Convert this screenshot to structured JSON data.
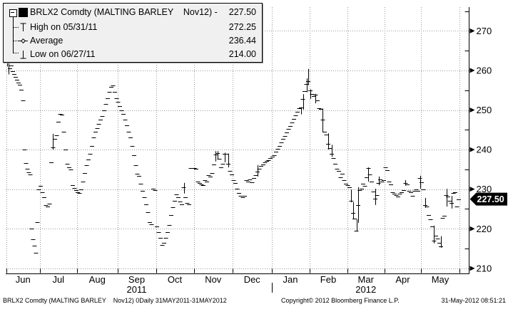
{
  "colors": {
    "grid": "#999999",
    "axis": "#000000",
    "marks": "#000000",
    "legend_bg": "#f0f0f0",
    "tag_bg": "#000000",
    "tag_text": "#ffffff"
  },
  "legend": {
    "title": {
      "label": "BRLX2 Comdty (MALTING BARLEY    Nov12) - ",
      "value": "227.50"
    },
    "rows": [
      {
        "icon": "high-marker",
        "label": "High on 05/31/11",
        "value": "272.25"
      },
      {
        "icon": "average-marker",
        "label": "Average",
        "value": "236.44"
      },
      {
        "icon": "low-marker",
        "label": "Low on 06/27/11",
        "value": "214.00"
      }
    ]
  },
  "status_bar": {
    "left": "BRLX2 Comdty (MALTING BARLEY    Nov12) 0Daily 31MAY2011-31MAY2012",
    "center": "Copyright© 2012 Bloomberg Finance L.P.",
    "right": "31-May-2012 08:51:21"
  },
  "chart_data": {
    "type": "ohlc_daily_ticks",
    "title": "BRLX2 Comdty (MALTING BARLEY Nov12) Daily 31MAY2011-31MAY2012",
    "last_price": 227.5,
    "last_price_label": "227.50",
    "high": {
      "date": "05/31/11",
      "value": 272.25
    },
    "low": {
      "date": "06/27/11",
      "value": 214.0
    },
    "average": 236.44,
    "ylim": [
      208.8,
      276.0
    ],
    "y_ticks_major": [
      210,
      220,
      230,
      240,
      250,
      260,
      270
    ],
    "y_ticks_minor": [
      215,
      225,
      235,
      245,
      255,
      265,
      275
    ],
    "grid": true,
    "year_separator_after_month_index": 6,
    "months": [
      {
        "label": "Jun",
        "year_label": null,
        "closes": [
          272.25,
          262,
          260.5,
          261.2,
          259.8,
          259,
          258.3,
          257.6,
          257,
          256.4,
          255.2,
          252.4,
          240,
          236.6,
          235.2,
          234.3,
          233.8,
          220,
          217.4,
          215.8,
          214,
          221.6,
          230
        ],
        "ranges": [
          [
            0,
            272.25,
            261
          ],
          [
            1,
            263,
            259
          ]
        ]
      },
      {
        "label": "Jul",
        "year_label": null,
        "closes": [
          230.9,
          229.3,
          227.9,
          226,
          225.6,
          226.3,
          236.7,
          240.5,
          242.8,
          243.6,
          247,
          249,
          248.8,
          244.5,
          240,
          236.5,
          235.6,
          235,
          231.1,
          230.3,
          229.7
        ],
        "ranges": [
          [
            7,
            244,
            240
          ]
        ]
      },
      {
        "label": "Aug",
        "year_label": null,
        "closes": [
          229.3,
          229,
          230,
          232,
          234,
          236,
          237.5,
          239,
          241,
          243,
          244.5,
          245.5,
          246.5,
          247.5,
          248.5,
          250,
          251.5,
          253,
          254.5,
          255.8,
          256.2,
          254.5,
          253
        ],
        "ranges": []
      },
      {
        "label": "Sep",
        "year_label": "2011",
        "closes": [
          252,
          251,
          250,
          249,
          247.5,
          246.2,
          244.6,
          243,
          241,
          238.5,
          236,
          233.9,
          233.3,
          231.3,
          229.6,
          228,
          226.2,
          224.2,
          221.7,
          221.2,
          230.2,
          229.8
        ],
        "ranges": []
      },
      {
        "label": "Oct",
        "year_label": null,
        "closes": [
          220.6,
          219.2,
          217.7,
          215.9,
          216.5,
          217.7,
          219.2,
          221,
          223.5,
          225.4,
          227,
          228.6,
          228,
          226.9,
          226.2,
          230.4,
          228,
          226.5,
          226.1,
          235.4,
          235.3
        ],
        "ranges": [
          [
            15,
            231.6,
            228.9
          ]
        ]
      },
      {
        "label": "Nov",
        "year_label": null,
        "closes": [
          235.4,
          235.2,
          232,
          231.5,
          231.2,
          231,
          232.3,
          232,
          233.5,
          233.2,
          234,
          236.2,
          238.8,
          239.2,
          237.6,
          235.5,
          236.4,
          238.9,
          239,
          236.5,
          234.6,
          233.7
        ],
        "ranges": [
          [
            12,
            239.6,
            237
          ],
          [
            13,
            239.6,
            237.5
          ],
          [
            17,
            239.2,
            236.8
          ],
          [
            19,
            239,
            235.5
          ]
        ]
      },
      {
        "label": "Dec",
        "year_label": null,
        "closes": [
          232.2,
          231.6,
          230.2,
          229,
          228.3,
          228,
          228.4,
          232.2,
          231.9,
          232.4,
          231.8,
          232.8,
          233.5,
          234.4,
          235.2,
          235.8,
          236.3,
          236.8,
          237.2,
          237.4,
          237.8
        ],
        "ranges": [
          [
            13,
            236.1,
            233.2
          ]
        ]
      },
      {
        "label": "Jan",
        "year_label": null,
        "closes": [
          238.2,
          238.6,
          239.4,
          240.2,
          241,
          241.8,
          242.7,
          243.5,
          244.3,
          245.2,
          246,
          246.8,
          247.7,
          248.6,
          249.5,
          250.4,
          250.7,
          252.8,
          254.8,
          256.5,
          257.2
        ],
        "ranges": [
          [
            16,
            250.7,
            248.9
          ],
          [
            17,
            254,
            250.1
          ],
          [
            19,
            258,
            254.5
          ],
          [
            20,
            260.4,
            256.3
          ]
        ]
      },
      {
        "label": "Feb",
        "year_label": null,
        "closes": [
          255,
          254,
          253.5,
          253.9,
          252.5,
          250.5,
          250.3,
          247.5,
          244.5,
          243.8,
          241.5,
          240.3,
          239,
          237.9,
          236.5,
          235.2,
          234.6,
          233,
          233.9,
          232.2,
          231.4
        ],
        "ranges": [
          [
            0,
            255.2,
            252.8
          ],
          [
            3,
            254.1,
            251.7
          ],
          [
            7,
            250.4,
            244.5
          ],
          [
            10,
            244.1,
            240
          ],
          [
            12,
            241.2,
            238.2
          ]
        ]
      },
      {
        "label": "Mar",
        "year_label": "2012",
        "closes": [
          231,
          230.5,
          227,
          224,
          222.6,
          219.5,
          226,
          229.8,
          230.1,
          231.3,
          230.8,
          233,
          235.3,
          233.8,
          232,
          229.4,
          227.6,
          228.5,
          231.5,
          232.5,
          232,
          232.3
        ],
        "ranges": [
          [
            2,
            229.9,
            226.7
          ],
          [
            3,
            226.7,
            222.4
          ],
          [
            5,
            222.4,
            219.3
          ],
          [
            6,
            230.5,
            221.5
          ],
          [
            12,
            235.5,
            231.9
          ],
          [
            16,
            230.1,
            226
          ],
          [
            18,
            233.2,
            231
          ]
        ]
      },
      {
        "label": "Apr",
        "year_label": null,
        "closes": [
          235.5,
          234.8,
          232,
          231.2,
          229.2,
          228.8,
          228.5,
          228.2,
          228.9,
          229.3,
          229.8,
          231.5,
          231.2,
          229.5,
          229.2,
          228.4,
          229.5,
          230,
          229.6,
          232.8
        ],
        "ranges": [
          [
            11,
            232.3,
            230.9
          ],
          [
            19,
            233.4,
            230.1
          ]
        ]
      },
      {
        "label": "May",
        "year_label": null,
        "closes": [
          231.7,
          230,
          226,
          225.6,
          223.5,
          222.3,
          220.5,
          217,
          218.2,
          217.6,
          216.5,
          215.5,
          222.8,
          223.2,
          228.5,
          228.2,
          227,
          226.5,
          229,
          229.3,
          225.6,
          227.5
        ],
        "ranges": [
          [
            2,
            227.8,
            225.3
          ],
          [
            7,
            220.8,
            216.3
          ],
          [
            11,
            218.1,
            215.2
          ],
          [
            14,
            230.1,
            225.6
          ],
          [
            17,
            228.3,
            225.1
          ]
        ]
      }
    ]
  }
}
